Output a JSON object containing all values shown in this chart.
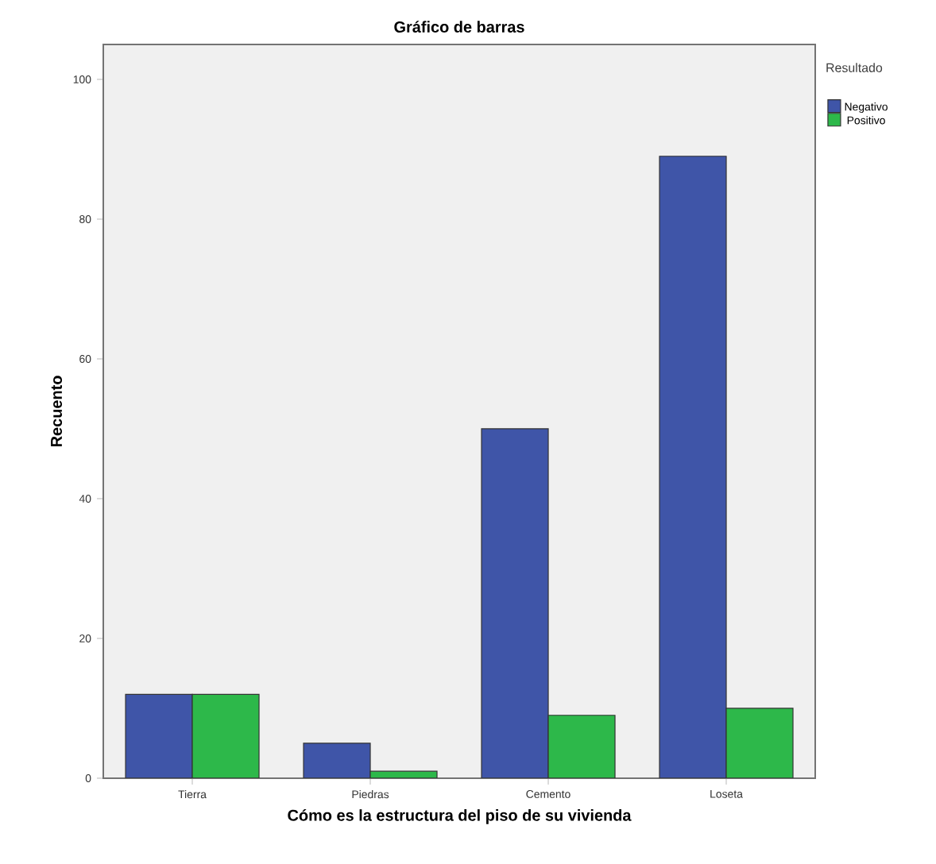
{
  "chart_data": {
    "type": "bar",
    "title": "Gráfico de barras",
    "xlabel": "Cómo es la estructura del piso de su vivienda",
    "ylabel": "Recuento",
    "legend_title": "Resultado",
    "categories": [
      "Tierra",
      "Piedras",
      "Cemento",
      "Loseta"
    ],
    "series": [
      {
        "name": "Negativo",
        "color": "#3f55a8",
        "values": [
          12,
          5,
          50,
          89
        ]
      },
      {
        "name": "Positivo",
        "color": "#2db84a",
        "values": [
          12,
          1,
          9,
          10
        ]
      }
    ],
    "ylim": [
      0,
      105
    ],
    "yticks": [
      0,
      20,
      40,
      60,
      80,
      100
    ],
    "legend": "top right"
  }
}
